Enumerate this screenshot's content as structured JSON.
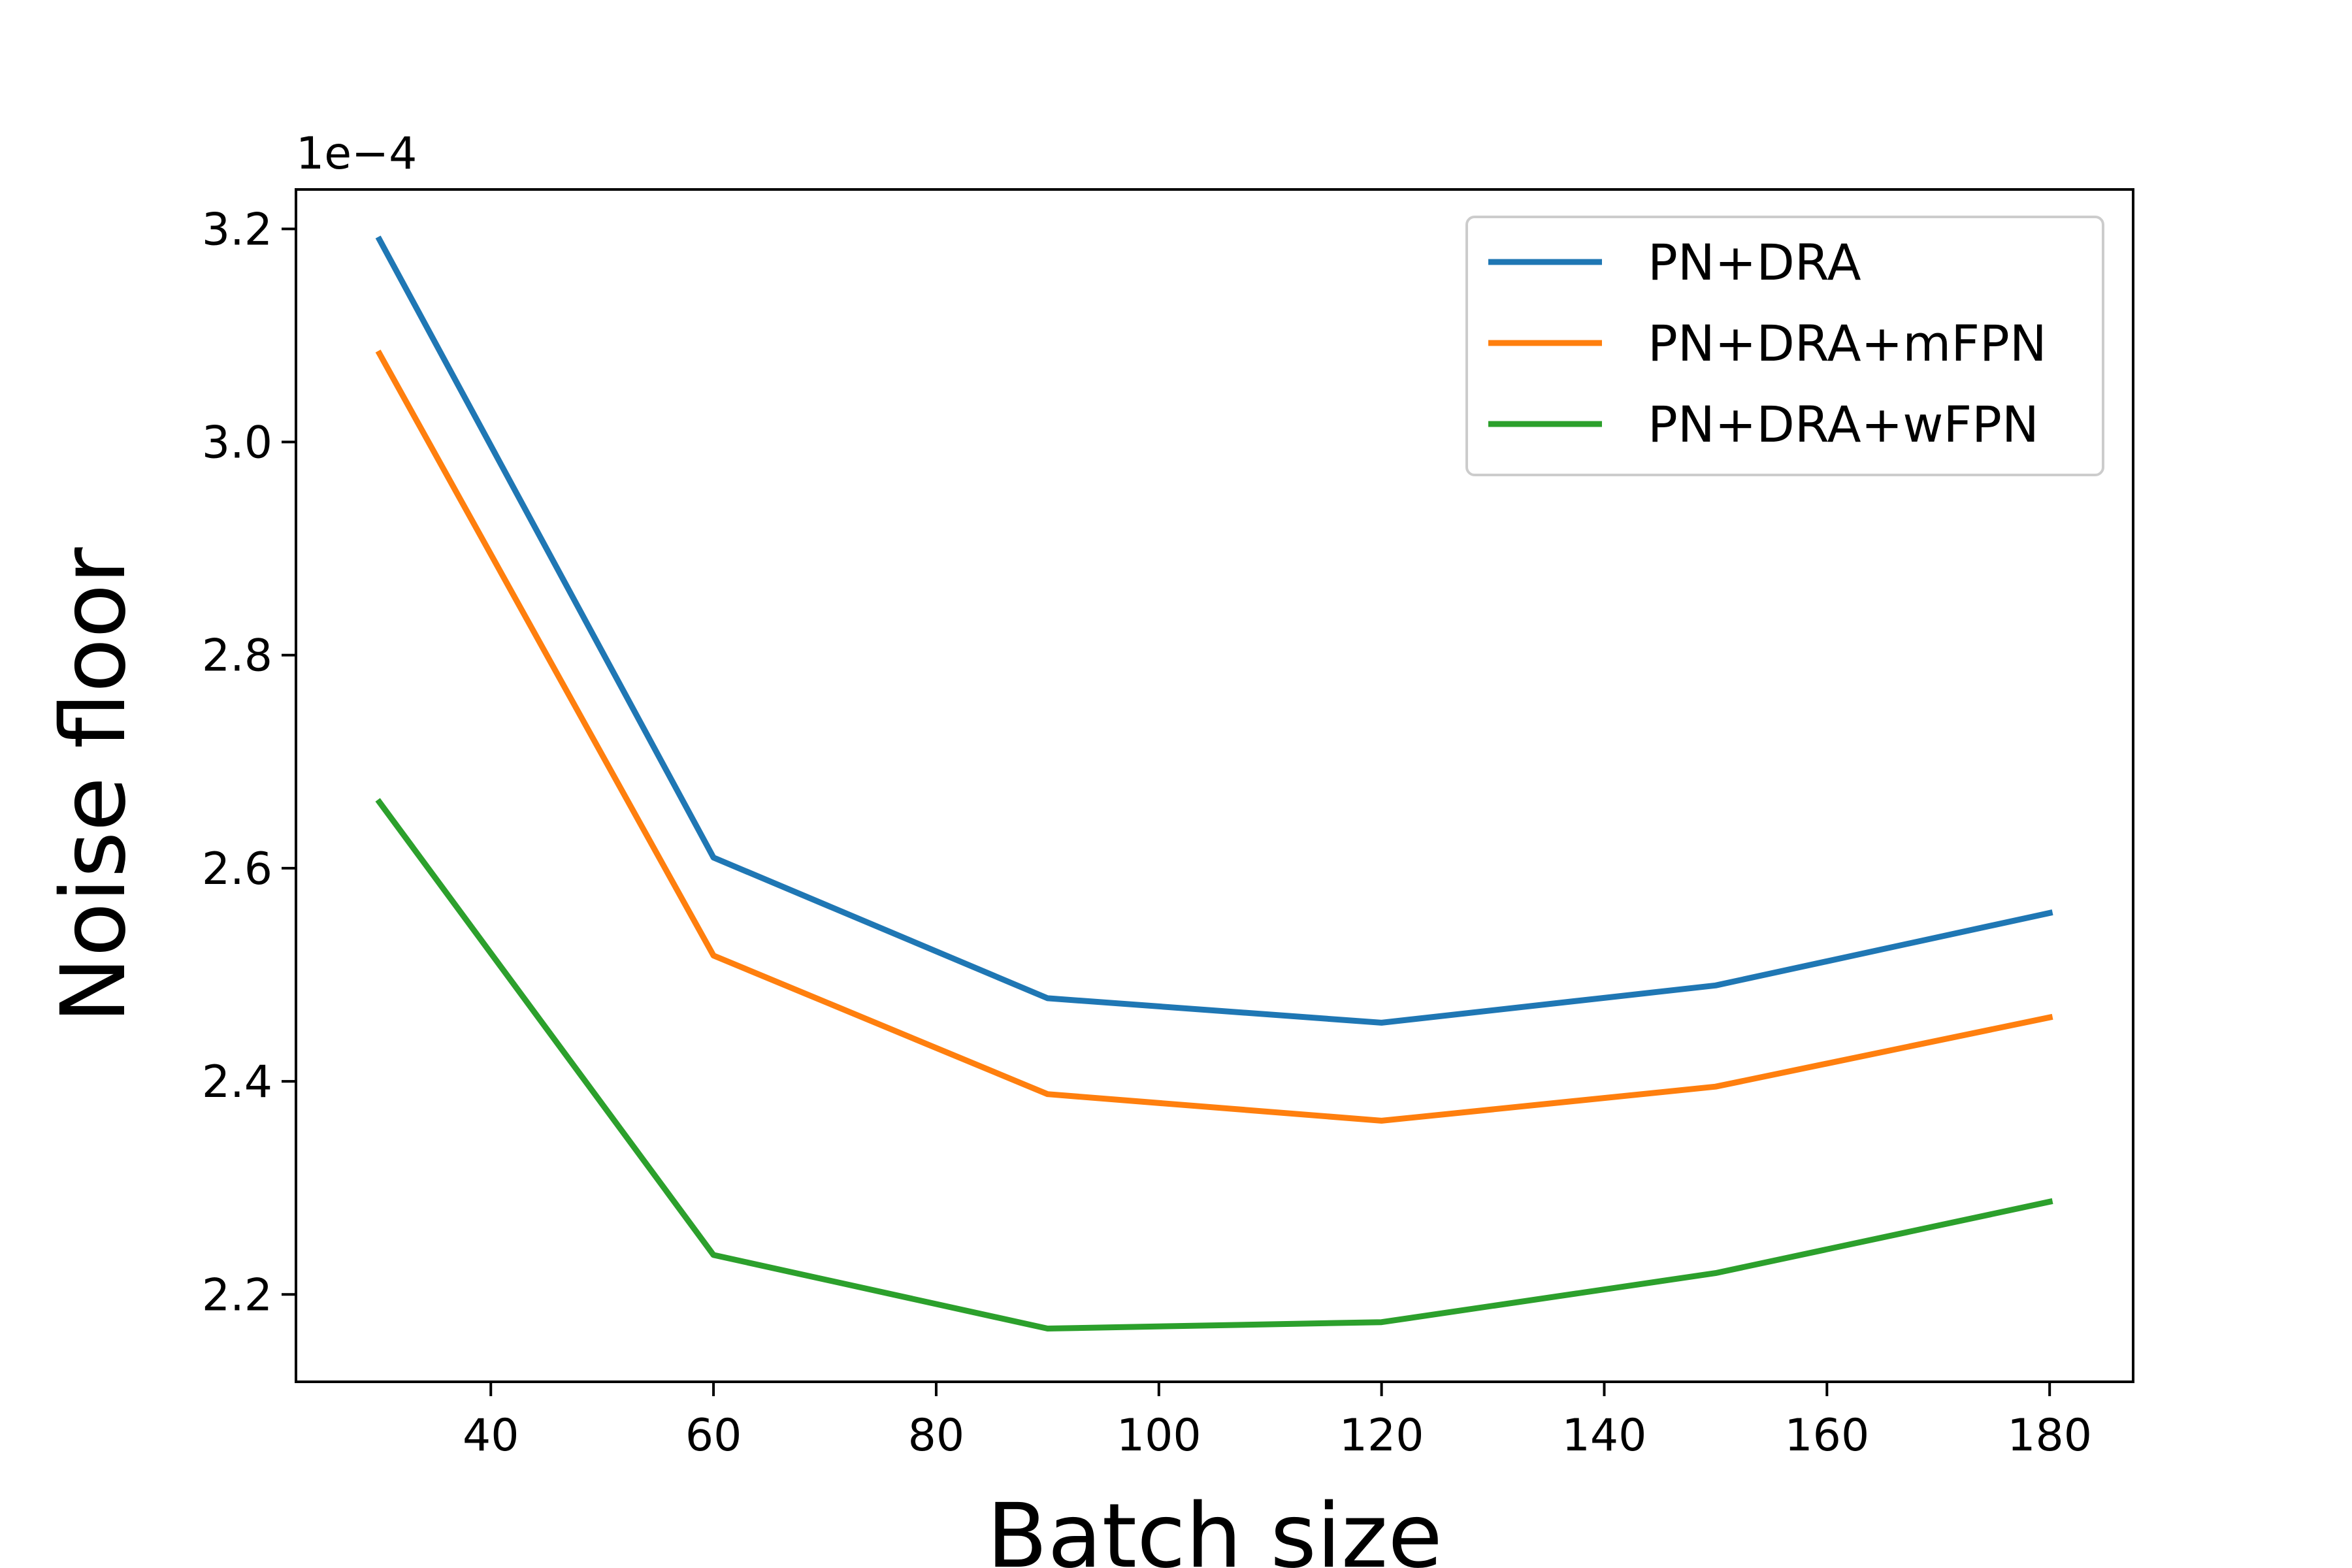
{
  "chart_data": {
    "type": "line",
    "title": "",
    "xlabel": "Batch size",
    "ylabel": "Noise floor",
    "y_offset_label": "1e−4",
    "y_scale_factor": 0.0001,
    "xlim": [
      22.5,
      187.5
    ],
    "ylim": [
      2.118,
      3.237
    ],
    "xticks": [
      40,
      60,
      80,
      100,
      120,
      140,
      160,
      180
    ],
    "yticks": [
      2.2,
      2.4,
      2.6,
      2.8,
      3.0,
      3.2
    ],
    "ytick_labels": [
      "2.2",
      "2.4",
      "2.6",
      "2.8",
      "3.0",
      "3.2"
    ],
    "grid": false,
    "legend_position": "top-right",
    "x": [
      30,
      60,
      90,
      120,
      150,
      180
    ],
    "series": [
      {
        "name": "PN+DRA",
        "color": "#1f77b4",
        "values": [
          3.19,
          2.61,
          2.478,
          2.455,
          2.49,
          2.558
        ]
      },
      {
        "name": "PN+DRA+mFPN",
        "color": "#ff7f0e",
        "values": [
          3.083,
          2.518,
          2.388,
          2.363,
          2.395,
          2.46
        ]
      },
      {
        "name": "PN+DRA+wFPN",
        "color": "#2ca02c",
        "values": [
          2.662,
          2.237,
          2.168,
          2.174,
          2.22,
          2.287
        ]
      }
    ]
  }
}
